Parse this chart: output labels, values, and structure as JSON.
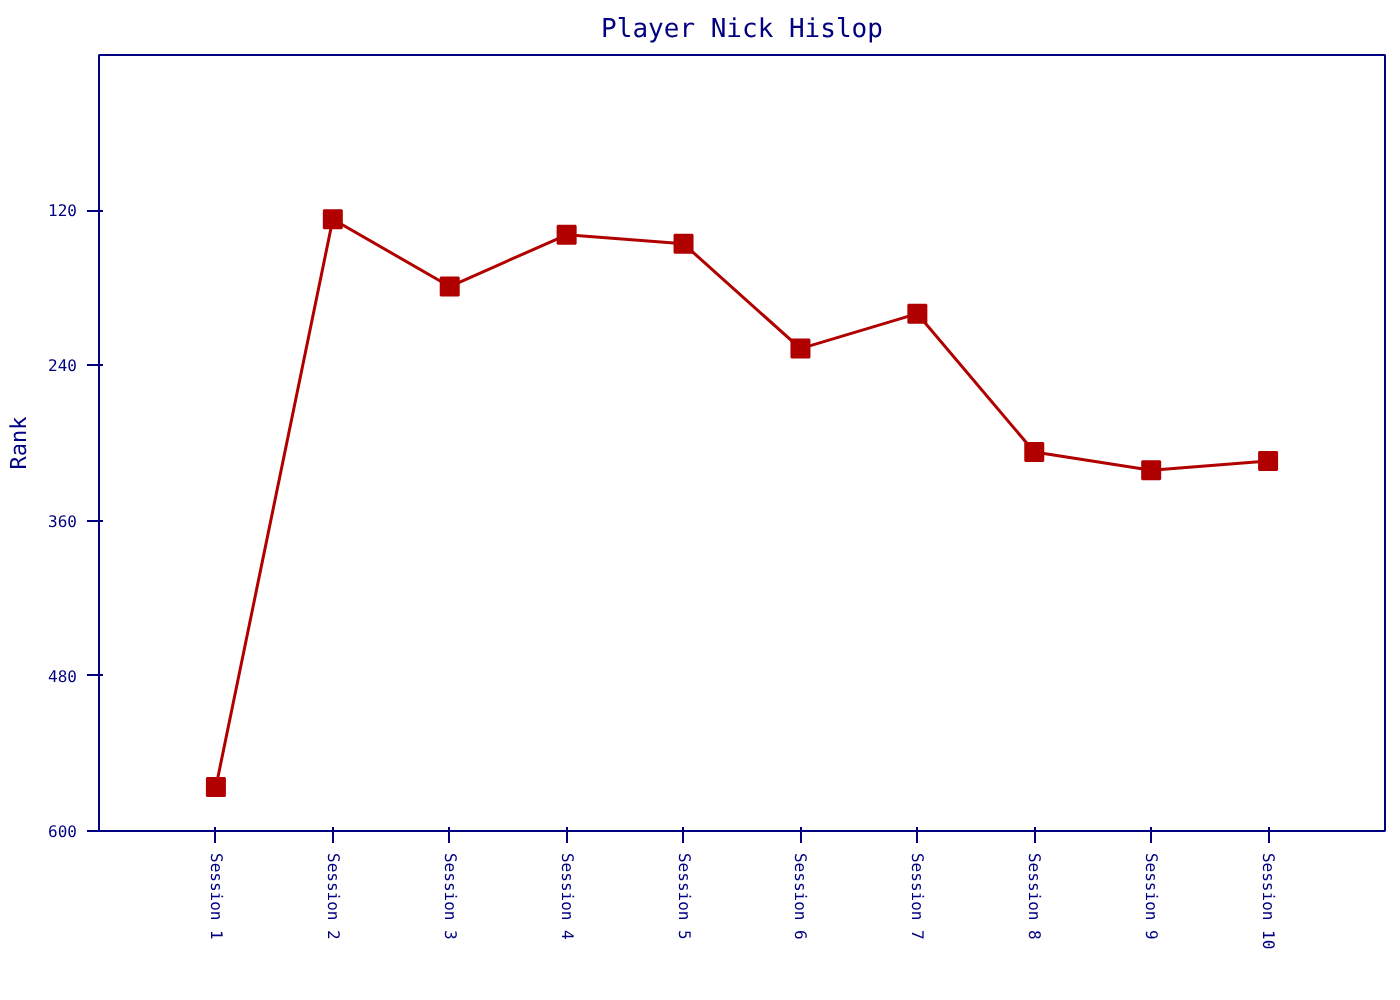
{
  "chart_data": {
    "type": "line",
    "title": "Player Nick Hislop",
    "ylabel": "Rank",
    "categories": [
      "Session 1",
      "Session 2",
      "Session 3",
      "Session 4",
      "Session 5",
      "Session 6",
      "Session 7",
      "Session 8",
      "Session 9",
      "Session 10"
    ],
    "series": [
      {
        "color": "#b00000",
        "values": [
          566,
          127,
          179,
          139,
          146,
          227,
          200,
          307,
          321,
          314
        ]
      }
    ],
    "ylim": [
      600,
      0
    ],
    "yticks": [
      120,
      240,
      360,
      480,
      600
    ],
    "grid": false,
    "marker": "square",
    "line_style": "solid"
  }
}
